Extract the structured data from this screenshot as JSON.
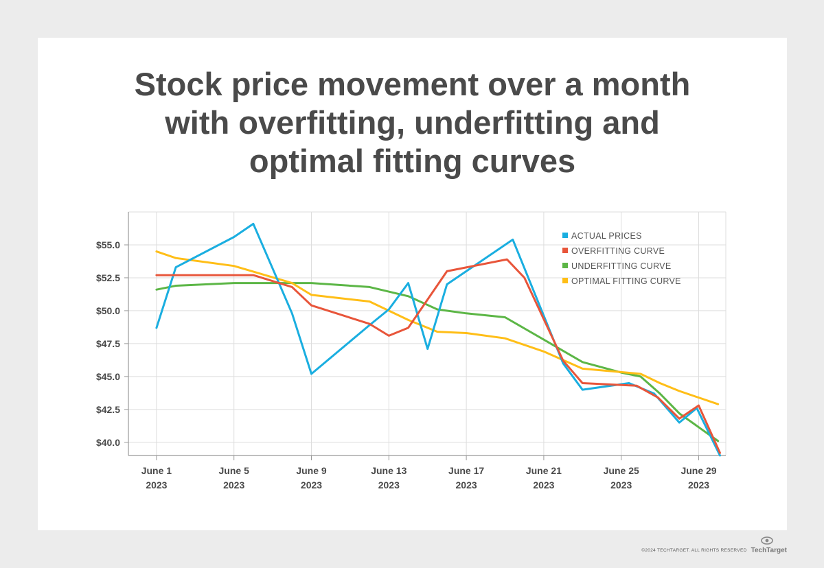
{
  "title_lines": [
    "Stock price movement over a month",
    "with overfitting, underfitting and",
    "optimal fitting curves"
  ],
  "footer": {
    "copyright": "©2024 TECHTARGET. ALL RIGHTS RESERVED",
    "brand": "TechTarget"
  },
  "colors": {
    "actual": "#1aaee0",
    "overfit": "#e8553a",
    "underfit": "#5cb646",
    "optimal": "#ffbe17",
    "grid": "#dddddd",
    "axis": "#999999",
    "text": "#4a4a4a"
  },
  "chart_data": {
    "type": "line",
    "title": "Stock price movement over a month with overfitting, underfitting and optimal fitting curves",
    "xlabel": "",
    "ylabel": "",
    "xlim": [
      -0.45,
      30.4
    ],
    "ylim": [
      39.0,
      57.5
    ],
    "x_ticks": [
      {
        "x": 1,
        "label": [
          "June 1",
          "2023"
        ]
      },
      {
        "x": 5,
        "label": [
          "June 5",
          "2023"
        ]
      },
      {
        "x": 9,
        "label": [
          "June 9",
          "2023"
        ]
      },
      {
        "x": 13,
        "label": [
          "June 13",
          "2023"
        ]
      },
      {
        "x": 17,
        "label": [
          "June 17",
          "2023"
        ]
      },
      {
        "x": 21,
        "label": [
          "June 21",
          "2023"
        ]
      },
      {
        "x": 25,
        "label": [
          "June 25",
          "2023"
        ]
      },
      {
        "x": 29,
        "label": [
          "June 29",
          "2023"
        ]
      }
    ],
    "y_ticks": [
      {
        "y": 40.0,
        "label": "$40.0"
      },
      {
        "y": 42.5,
        "label": "$42.5"
      },
      {
        "y": 45.0,
        "label": "$45.0"
      },
      {
        "y": 47.5,
        "label": "$47.5"
      },
      {
        "y": 50.0,
        "label": "$50.0"
      },
      {
        "y": 52.5,
        "label": "$52.5"
      },
      {
        "y": 55.0,
        "label": "$55.0"
      }
    ],
    "legend_position": "top-right",
    "series": [
      {
        "name": "ACTUAL PRICES",
        "color_key": "actual",
        "points": [
          [
            1,
            48.7
          ],
          [
            2,
            53.3
          ],
          [
            5,
            55.6
          ],
          [
            6,
            56.6
          ],
          [
            8,
            49.8
          ],
          [
            9,
            45.2
          ],
          [
            12,
            48.9
          ],
          [
            13,
            50.1
          ],
          [
            14,
            52.1
          ],
          [
            15,
            47.1
          ],
          [
            16,
            52.0
          ],
          [
            19.4,
            55.4
          ],
          [
            22,
            46.0
          ],
          [
            23,
            44.0
          ],
          [
            25.4,
            44.5
          ],
          [
            26.7,
            43.7
          ],
          [
            28,
            41.5
          ],
          [
            28.9,
            42.6
          ],
          [
            30.1,
            39.0
          ]
        ]
      },
      {
        "name": "OVERFITTING CURVE",
        "color_key": "overfit",
        "points": [
          [
            1,
            52.7
          ],
          [
            5,
            52.7
          ],
          [
            6,
            52.7
          ],
          [
            8,
            51.8
          ],
          [
            9,
            50.4
          ],
          [
            12,
            49.0
          ],
          [
            13,
            48.1
          ],
          [
            14,
            48.7
          ],
          [
            16,
            53.0
          ],
          [
            19.1,
            53.9
          ],
          [
            20,
            52.5
          ],
          [
            22,
            46.2
          ],
          [
            23,
            44.5
          ],
          [
            25.8,
            44.3
          ],
          [
            26.9,
            43.4
          ],
          [
            28,
            41.8
          ],
          [
            29,
            42.8
          ],
          [
            30.1,
            39.2
          ]
        ]
      },
      {
        "name": "UNDERFITTING CURVE",
        "color_key": "underfit",
        "points": [
          [
            1,
            51.6
          ],
          [
            2,
            51.9
          ],
          [
            5,
            52.1
          ],
          [
            8,
            52.1
          ],
          [
            9,
            52.1
          ],
          [
            12,
            51.8
          ],
          [
            14,
            51.1
          ],
          [
            15.5,
            50.1
          ],
          [
            17,
            49.8
          ],
          [
            19,
            49.5
          ],
          [
            21,
            47.8
          ],
          [
            23,
            46.1
          ],
          [
            25,
            45.3
          ],
          [
            26,
            45.0
          ],
          [
            27,
            43.7
          ],
          [
            28,
            42.2
          ],
          [
            30,
            40.1
          ]
        ]
      },
      {
        "name": "OPTIMAL FITTING CURVE",
        "color_key": "optimal",
        "points": [
          [
            1,
            54.5
          ],
          [
            2,
            54.0
          ],
          [
            5,
            53.4
          ],
          [
            8,
            52.1
          ],
          [
            9,
            51.2
          ],
          [
            12,
            50.7
          ],
          [
            14,
            49.3
          ],
          [
            15.5,
            48.4
          ],
          [
            17,
            48.3
          ],
          [
            19,
            47.9
          ],
          [
            21,
            46.9
          ],
          [
            23,
            45.6
          ],
          [
            26,
            45.2
          ],
          [
            27,
            44.5
          ],
          [
            28,
            43.9
          ],
          [
            30,
            42.9
          ]
        ]
      }
    ]
  }
}
